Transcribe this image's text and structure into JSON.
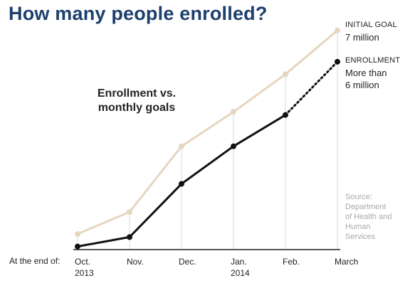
{
  "title": "How many people enrolled?",
  "inset_title": [
    "Enrollment vs.",
    "monthly goals"
  ],
  "x_axis_prefix": "At the end of:",
  "source": [
    "Source:",
    "Department",
    "of Health and",
    "Human",
    "Services"
  ],
  "legend": {
    "goal": {
      "caption": "INITIAL GOAL",
      "value": "7 million"
    },
    "enrollment": {
      "caption": "ENROLLMENT",
      "value_lines": [
        "More than",
        "6 million"
      ]
    }
  },
  "colors": {
    "title": "#1d3f6e",
    "goal_line": "#e5d6bf",
    "enrollment_line": "#111111",
    "gridline": "#e6e6e6",
    "baseline": "#222222",
    "source_text": "#a9a9a9"
  },
  "chart_data": {
    "type": "line",
    "categories": [
      [
        "Oct.",
        "2013"
      ],
      [
        "Nov.",
        ""
      ],
      [
        "Dec.",
        ""
      ],
      [
        "Jan.",
        "2014"
      ],
      [
        "Feb.",
        ""
      ],
      [
        "March",
        ""
      ]
    ],
    "ylim": [
      0,
      7.2
    ],
    "series": [
      {
        "name": "INITIAL GOAL",
        "values": [
          0.5,
          1.2,
          3.3,
          4.4,
          5.6,
          7.0
        ],
        "style": "solid"
      },
      {
        "name": "ENROLLMENT",
        "values": [
          0.1,
          0.4,
          2.1,
          3.3,
          4.3,
          6.0
        ],
        "dashed_last_segment": true
      }
    ],
    "vertical_gridlines_at_categories": true,
    "legend_placement": "right, at line ends"
  }
}
